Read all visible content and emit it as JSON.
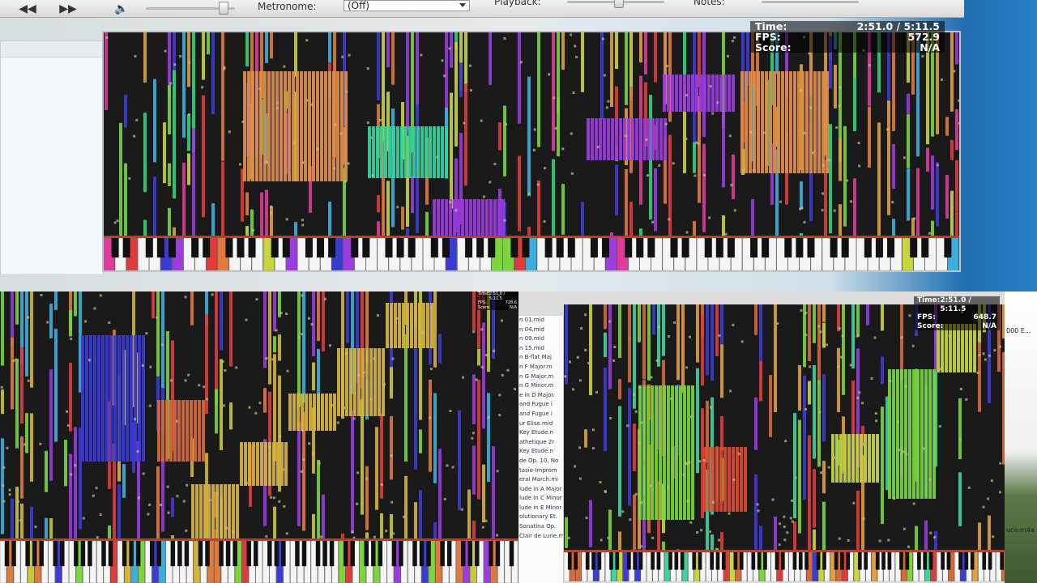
{
  "top_window": {
    "toolbar": {
      "rewind_icon": "rewind-icon",
      "forward_icon": "fast-forward-icon",
      "volume_icon": "speaker-icon",
      "metronome_label": "Metronome:",
      "metronome_value": "(Off)",
      "playback_label": "Playback:",
      "notes_label": "Notes:"
    },
    "stats": {
      "time_label": "Time:",
      "time_value": "2:51.0 / 5:11.5",
      "fps_label": "FPS:",
      "fps_value": "572.9",
      "score_label": "Score:",
      "score_value": "N/A"
    }
  },
  "bottom_left": {
    "stats": {
      "time_label": "Time:",
      "time_value": "2:51.0 / 5:11.5",
      "fps_label": "FPS:",
      "fps_value": "728.6",
      "score_label": "Score:",
      "score_value": "N/A"
    }
  },
  "bottom_right": {
    "stats": {
      "time_label": "Time:",
      "time_value": "2:51.0 / 5:11.5",
      "fps_label": "FPS:",
      "fps_value": "648.7",
      "score_label": "Score:",
      "score_value": "N/A"
    },
    "file_list": [
      "n 01.mid",
      "n 04.mid",
      "n 09.mid",
      "n 15.mid",
      "n B-flat Maj",
      "n F Major.m",
      "n G Major.m",
      "n G Minor.m",
      "e in D Major.",
      "and Fugue i",
      "and Fugue i",
      "ur Elise.mid",
      "Key Etude.n",
      "athetique 2r",
      "Key Etude.n",
      "de Op. 10, No",
      "tasie-Improm",
      "eral March.mi",
      "lude in A Major",
      "lude in C Minor",
      "lude in E Minor",
      "olutionary Et.",
      "Sonatina Op.",
      "Clair de Lune.m"
    ],
    "desktop_texts": [
      "000 E...",
      "uce.m4a"
    ]
  },
  "colors": {
    "note_palette_top": [
      "#3b3bd6",
      "#e07a3c",
      "#2fd67a",
      "#9b3be0",
      "#e03b3b",
      "#3bb0e0",
      "#c8d63b",
      "#e0a03b",
      "#7ad63b",
      "#e03b9b"
    ],
    "note_palette_left": [
      "#3b3bd6",
      "#e07a3c",
      "#d6b43b",
      "#7ad63b",
      "#9b3be0",
      "#e03b3b",
      "#3bb0e0",
      "#c8c83b"
    ],
    "note_palette_right": [
      "#7ad63b",
      "#e03b3b",
      "#3b3bd6",
      "#9b3be0",
      "#c8d63b",
      "#e0a03b",
      "#3bd6a0",
      "#d66a3b"
    ],
    "key_border": "#c0392b"
  }
}
